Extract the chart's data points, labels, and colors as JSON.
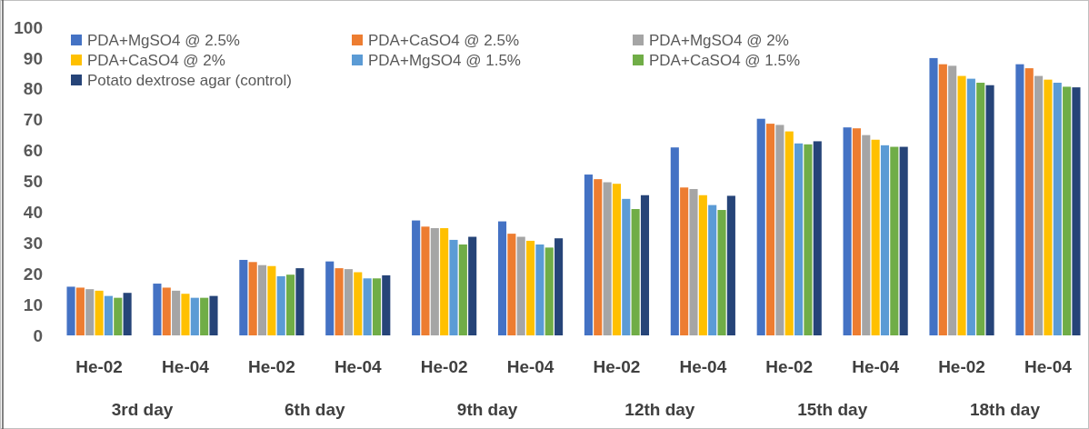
{
  "chart_data": {
    "type": "bar",
    "categories": [
      "He-02",
      "He-04",
      "He-02",
      "He-04",
      "He-02",
      "He-04",
      "He-02",
      "He-04",
      "He-02",
      "He-04",
      "He-02",
      "He-04"
    ],
    "annotations": [
      "3rd day",
      "6th day",
      "9th day",
      "12th day",
      "15th day",
      "18th day"
    ],
    "ylim": [
      0,
      100
    ],
    "yticks": [
      0,
      10,
      20,
      30,
      40,
      50,
      60,
      70,
      80,
      90,
      100
    ],
    "grid": false,
    "legend": "top left",
    "series": [
      {
        "name": "PDA+MgSO4 @ 2.5%",
        "color": "#4472c4",
        "values": [
          15.8,
          16.8,
          24.5,
          24,
          37.3,
          37,
          52.2,
          61,
          70.3,
          67.5,
          90,
          88
        ]
      },
      {
        "name": "PDA+CaSO4 @ 2.5%",
        "color": "#ed7d31",
        "values": [
          15.5,
          15.5,
          23.8,
          21.8,
          35.3,
          33,
          50.7,
          48,
          68.7,
          67.2,
          88,
          86.7
        ]
      },
      {
        "name": "PDA+MgSO4 @ 2%",
        "color": "#a5a5a5",
        "values": [
          15,
          14.5,
          22.8,
          21.5,
          34.8,
          32,
          49.7,
          47.5,
          68.3,
          65,
          87.5,
          84.2
        ]
      },
      {
        "name": "PDA+CaSO4 @ 2%",
        "color": "#ffc000",
        "values": [
          14.5,
          13.5,
          22.5,
          20.5,
          34.8,
          30.7,
          49.2,
          45.5,
          66.2,
          63.5,
          84.2,
          83
        ]
      },
      {
        "name": "PDA+MgSO4 @ 1.5%",
        "color": "#5b9bd5",
        "values": [
          12.8,
          12.2,
          19.2,
          18.5,
          31,
          29.5,
          44.3,
          42.3,
          62.3,
          61.7,
          83.3,
          82
        ]
      },
      {
        "name": "PDA+CaSO4 @ 1.5%",
        "color": "#70ad47",
        "values": [
          12.2,
          12.2,
          19.7,
          18.5,
          29.5,
          28.5,
          41,
          40.7,
          62,
          61.2,
          82,
          80.7
        ]
      },
      {
        "name": "Potato dextrose agar (control)",
        "color": "#264478",
        "values": [
          13.8,
          12.8,
          21.8,
          19.5,
          32,
          31.5,
          45.5,
          45.3,
          63,
          61.2,
          81.2,
          80.5
        ]
      }
    ]
  }
}
